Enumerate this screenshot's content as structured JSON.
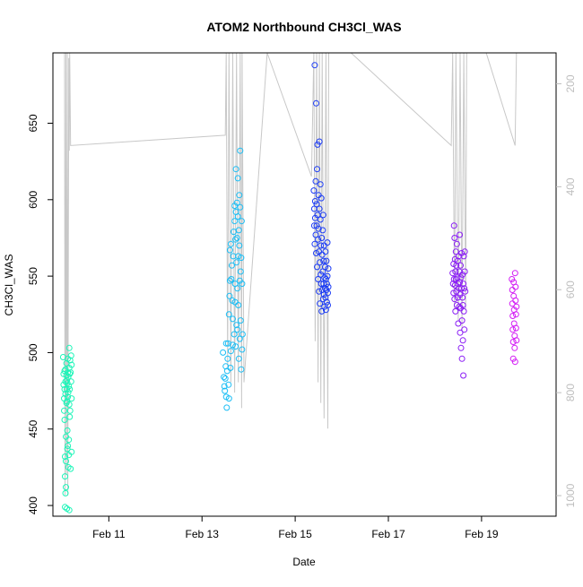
{
  "chart_data": {
    "type": "scatter",
    "title": "ATOM2 Northbound CH3Cl_WAS",
    "xlabel": "Date",
    "ylabel": "CH3Cl_WAS",
    "x_ticks": [
      "Feb 11",
      "Feb 13",
      "Feb 15",
      "Feb 17",
      "Feb 19"
    ],
    "x_tick_days": [
      11,
      13,
      15,
      17,
      19
    ],
    "xlim_days": [
      9.8,
      20.6
    ],
    "y_ticks": [
      400,
      450,
      500,
      550,
      600,
      650
    ],
    "ylim": [
      393,
      696
    ],
    "y2_ticks": [
      200,
      400,
      600,
      800,
      1000
    ],
    "y2_label": "",
    "y2lim_reversed": [
      1040,
      140
    ],
    "colors": {
      "axis": "#000000",
      "secondary_axis": "#bebebe",
      "pressure_line": "#c8c8c8",
      "flights": [
        "#1cf5b8",
        "#1cbef5",
        "#1c3cf5",
        "#8a1cf5",
        "#d31cf5"
      ]
    },
    "pressure_trace": [
      [
        10.05,
        100
      ],
      [
        10.06,
        999
      ],
      [
        10.08,
        140
      ],
      [
        10.09,
        960
      ],
      [
        10.11,
        100
      ],
      [
        10.12,
        1000
      ],
      [
        10.14,
        150
      ],
      [
        10.15,
        330
      ],
      [
        10.16,
        140
      ],
      [
        10.18,
        320
      ],
      [
        13.5,
        300
      ],
      [
        13.52,
        140
      ],
      [
        13.55,
        750
      ],
      [
        13.58,
        120
      ],
      [
        13.62,
        780
      ],
      [
        13.66,
        110
      ],
      [
        13.7,
        800
      ],
      [
        13.74,
        130
      ],
      [
        13.78,
        780
      ],
      [
        13.82,
        100
      ],
      [
        13.85,
        830
      ],
      [
        13.86,
        130
      ],
      [
        13.9,
        780
      ],
      [
        14.4,
        100
      ],
      [
        15.35,
        380
      ],
      [
        15.4,
        100
      ],
      [
        15.43,
        700
      ],
      [
        15.46,
        120
      ],
      [
        15.49,
        780
      ],
      [
        15.52,
        100
      ],
      [
        15.55,
        820
      ],
      [
        15.58,
        120
      ],
      [
        15.62,
        850
      ],
      [
        15.66,
        100
      ],
      [
        15.7,
        870
      ],
      [
        15.72,
        130
      ],
      [
        16.2,
        100
      ],
      [
        18.35,
        320
      ],
      [
        18.38,
        100
      ],
      [
        18.42,
        640
      ],
      [
        18.45,
        110
      ],
      [
        18.5,
        660
      ],
      [
        18.54,
        100
      ],
      [
        18.58,
        680
      ],
      [
        18.62,
        110
      ],
      [
        18.66,
        640
      ],
      [
        18.68,
        130
      ],
      [
        19.1,
        100
      ],
      [
        19.72,
        320
      ],
      [
        19.75,
        100
      ]
    ],
    "series": [
      {
        "name": "",
        "points": [
          [
            10.02,
            497
          ],
          [
            10.03,
            479
          ],
          [
            10.03,
            486
          ],
          [
            10.04,
            470
          ],
          [
            10.04,
            462
          ],
          [
            10.05,
            488
          ],
          [
            10.05,
            476
          ],
          [
            10.05,
            456
          ],
          [
            10.06,
            432
          ],
          [
            10.06,
            419
          ],
          [
            10.06,
            399
          ],
          [
            10.07,
            489
          ],
          [
            10.07,
            481
          ],
          [
            10.07,
            473
          ],
          [
            10.07,
            408
          ],
          [
            10.08,
            412
          ],
          [
            10.08,
            445
          ],
          [
            10.08,
            429
          ],
          [
            10.09,
            493
          ],
          [
            10.09,
            485
          ],
          [
            10.09,
            467
          ],
          [
            10.1,
            482
          ],
          [
            10.1,
            476
          ],
          [
            10.1,
            468
          ],
          [
            10.1,
            398
          ],
          [
            10.11,
            480
          ],
          [
            10.11,
            449
          ],
          [
            10.11,
            437
          ],
          [
            10.12,
            496
          ],
          [
            10.12,
            487
          ],
          [
            10.12,
            471
          ],
          [
            10.12,
            439
          ],
          [
            10.13,
            484
          ],
          [
            10.13,
            474
          ],
          [
            10.13,
            425
          ],
          [
            10.14,
            433
          ],
          [
            10.14,
            443
          ],
          [
            10.14,
            478
          ],
          [
            10.15,
            490
          ],
          [
            10.15,
            503
          ],
          [
            10.15,
            466
          ],
          [
            10.15,
            397
          ],
          [
            10.16,
            486
          ],
          [
            10.16,
            476
          ],
          [
            10.16,
            458
          ],
          [
            10.17,
            495
          ],
          [
            10.17,
            462
          ],
          [
            10.18,
            487
          ],
          [
            10.18,
            424
          ],
          [
            10.19,
            498
          ],
          [
            10.19,
            481
          ],
          [
            10.2,
            492
          ],
          [
            10.2,
            470
          ],
          [
            10.2,
            435
          ]
        ]
      },
      {
        "name": "",
        "points": [
          [
            13.45,
            500
          ],
          [
            13.47,
            484
          ],
          [
            13.48,
            478
          ],
          [
            13.49,
            475
          ],
          [
            13.5,
            483
          ],
          [
            13.51,
            491
          ],
          [
            13.52,
            471
          ],
          [
            13.52,
            506
          ],
          [
            13.53,
            464
          ],
          [
            13.54,
            488
          ],
          [
            13.55,
            496
          ],
          [
            13.56,
            506
          ],
          [
            13.57,
            479
          ],
          [
            13.58,
            470
          ],
          [
            13.58,
            525
          ],
          [
            13.59,
            537
          ],
          [
            13.6,
            547
          ],
          [
            13.6,
            567
          ],
          [
            13.61,
            490
          ],
          [
            13.62,
            501
          ],
          [
            13.62,
            571
          ],
          [
            13.63,
            548
          ],
          [
            13.64,
            557
          ],
          [
            13.65,
            534
          ],
          [
            13.66,
            522
          ],
          [
            13.66,
            505
          ],
          [
            13.67,
            563
          ],
          [
            13.68,
            579
          ],
          [
            13.69,
            512
          ],
          [
            13.7,
            596
          ],
          [
            13.7,
            586
          ],
          [
            13.71,
            545
          ],
          [
            13.71,
            533
          ],
          [
            13.72,
            574
          ],
          [
            13.72,
            504
          ],
          [
            13.73,
            620
          ],
          [
            13.73,
            592
          ],
          [
            13.74,
            559
          ],
          [
            13.74,
            518
          ],
          [
            13.75,
            598
          ],
          [
            13.75,
            575
          ],
          [
            13.76,
            542
          ],
          [
            13.76,
            515
          ],
          [
            13.77,
            614
          ],
          [
            13.77,
            589
          ],
          [
            13.78,
            563
          ],
          [
            13.78,
            531
          ],
          [
            13.79,
            496
          ],
          [
            13.79,
            580
          ],
          [
            13.8,
            603
          ],
          [
            13.8,
            570
          ],
          [
            13.81,
            547
          ],
          [
            13.81,
            509
          ],
          [
            13.82,
            632
          ],
          [
            13.82,
            595
          ],
          [
            13.83,
            553
          ],
          [
            13.83,
            521
          ],
          [
            13.84,
            489
          ],
          [
            13.84,
            562
          ],
          [
            13.85,
            586
          ],
          [
            13.86,
            545
          ],
          [
            13.86,
            502
          ],
          [
            13.87,
            512
          ]
        ]
      },
      {
        "name": "",
        "points": [
          [
            15.4,
            606
          ],
          [
            15.41,
            594
          ],
          [
            15.41,
            583
          ],
          [
            15.42,
            688
          ],
          [
            15.42,
            571
          ],
          [
            15.43,
            599
          ],
          [
            15.43,
            588
          ],
          [
            15.44,
            612
          ],
          [
            15.44,
            577
          ],
          [
            15.45,
            663
          ],
          [
            15.45,
            565
          ],
          [
            15.46,
            597
          ],
          [
            15.46,
            583
          ],
          [
            15.47,
            620
          ],
          [
            15.47,
            556
          ],
          [
            15.48,
            636
          ],
          [
            15.48,
            590
          ],
          [
            15.49,
            574
          ],
          [
            15.49,
            548
          ],
          [
            15.5,
            603
          ],
          [
            15.5,
            581
          ],
          [
            15.51,
            566
          ],
          [
            15.51,
            540
          ],
          [
            15.52,
            638
          ],
          [
            15.52,
            594
          ],
          [
            15.53,
            559
          ],
          [
            15.53,
            532
          ],
          [
            15.54,
            610
          ],
          [
            15.54,
            587
          ],
          [
            15.55,
            570
          ],
          [
            15.55,
            551
          ],
          [
            15.56,
            545
          ],
          [
            15.56,
            601
          ],
          [
            15.57,
            575
          ],
          [
            15.57,
            527
          ],
          [
            15.58,
            564
          ],
          [
            15.58,
            541
          ],
          [
            15.59,
            580
          ],
          [
            15.59,
            553
          ],
          [
            15.6,
            535
          ],
          [
            15.6,
            590
          ],
          [
            15.61,
            560
          ],
          [
            15.61,
            545
          ],
          [
            15.62,
            538
          ],
          [
            15.62,
            570
          ],
          [
            15.63,
            549
          ],
          [
            15.63,
            530
          ],
          [
            15.64,
            556
          ],
          [
            15.64,
            542
          ],
          [
            15.65,
            566
          ],
          [
            15.65,
            536
          ],
          [
            15.66,
            548
          ],
          [
            15.66,
            528
          ],
          [
            15.67,
            560
          ],
          [
            15.67,
            541
          ],
          [
            15.68,
            545
          ],
          [
            15.68,
            533
          ],
          [
            15.69,
            572
          ],
          [
            15.69,
            550
          ],
          [
            15.7,
            539
          ],
          [
            15.7,
            531
          ],
          [
            15.71,
            555
          ],
          [
            15.71,
            543
          ]
        ]
      },
      {
        "name": "",
        "points": [
          [
            18.38,
            552
          ],
          [
            18.39,
            545
          ],
          [
            18.4,
            558
          ],
          [
            18.4,
            539
          ],
          [
            18.41,
            583
          ],
          [
            18.41,
            548
          ],
          [
            18.42,
            575
          ],
          [
            18.42,
            535
          ],
          [
            18.43,
            561
          ],
          [
            18.43,
            544
          ],
          [
            18.44,
            553
          ],
          [
            18.44,
            527
          ],
          [
            18.45,
            566
          ],
          [
            18.45,
            548
          ],
          [
            18.46,
            540
          ],
          [
            18.46,
            557
          ],
          [
            18.47,
            531
          ],
          [
            18.47,
            571
          ],
          [
            18.48,
            549
          ],
          [
            18.49,
            536
          ],
          [
            18.49,
            560
          ],
          [
            18.5,
            545
          ],
          [
            18.5,
            519
          ],
          [
            18.51,
            563
          ],
          [
            18.51,
            542
          ],
          [
            18.52,
            553
          ],
          [
            18.52,
            530
          ],
          [
            18.53,
            546
          ],
          [
            18.53,
            577
          ],
          [
            18.54,
            538
          ],
          [
            18.54,
            513
          ],
          [
            18.55,
            557
          ],
          [
            18.55,
            529
          ],
          [
            18.56,
            549
          ],
          [
            18.56,
            503
          ],
          [
            18.57,
            542
          ],
          [
            18.57,
            565
          ],
          [
            18.58,
            521
          ],
          [
            18.58,
            496
          ],
          [
            18.59,
            551
          ],
          [
            18.59,
            536
          ],
          [
            18.6,
            531
          ],
          [
            18.6,
            508
          ],
          [
            18.61,
            545
          ],
          [
            18.61,
            485
          ],
          [
            18.62,
            563
          ],
          [
            18.62,
            527
          ],
          [
            18.63,
            542
          ],
          [
            18.63,
            515
          ],
          [
            18.64,
            566
          ],
          [
            18.64,
            553
          ],
          [
            18.65,
            540
          ]
        ]
      },
      {
        "name": "",
        "points": [
          [
            19.65,
            548
          ],
          [
            19.66,
            541
          ],
          [
            19.66,
            532
          ],
          [
            19.67,
            524
          ],
          [
            19.67,
            515
          ],
          [
            19.68,
            507
          ],
          [
            19.68,
            496
          ],
          [
            19.69,
            546
          ],
          [
            19.69,
            537
          ],
          [
            19.7,
            528
          ],
          [
            19.7,
            519
          ],
          [
            19.71,
            511
          ],
          [
            19.71,
            503
          ],
          [
            19.72,
            494
          ],
          [
            19.72,
            552
          ],
          [
            19.73,
            543
          ],
          [
            19.73,
            534
          ],
          [
            19.74,
            525
          ],
          [
            19.74,
            516
          ],
          [
            19.75,
            508
          ],
          [
            19.75,
            530
          ]
        ]
      }
    ]
  }
}
